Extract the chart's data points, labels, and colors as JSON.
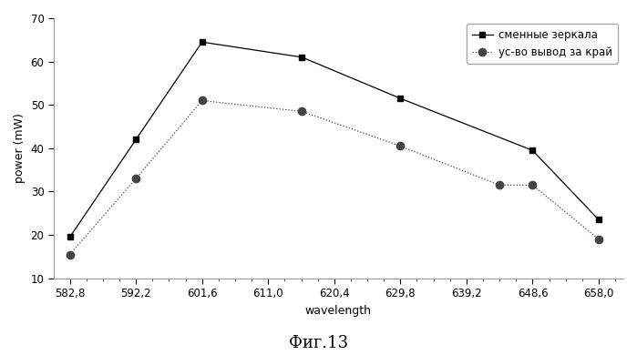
{
  "series1_label": "сменные зеркала",
  "series2_label": "ус-во вывод за край",
  "series1_x": [
    582.8,
    592.2,
    601.6,
    615.8,
    629.8,
    648.6,
    658.0
  ],
  "series1_y": [
    19.5,
    42.0,
    64.5,
    61.0,
    51.5,
    39.5,
    23.5
  ],
  "series2_x": [
    582.8,
    592.2,
    601.6,
    615.8,
    629.8,
    643.9,
    648.6,
    658.0
  ],
  "series2_y": [
    15.5,
    33.0,
    51.0,
    48.5,
    40.5,
    31.5,
    31.5,
    19.0
  ],
  "xlabel": "wavelength",
  "ylabel": "power (mW)",
  "ylim": [
    10,
    70
  ],
  "yticks": [
    10,
    20,
    30,
    40,
    50,
    60,
    70
  ],
  "xtick_labels": [
    "582,8",
    "592,2",
    "601,6",
    "611,0",
    "620,4",
    "629,8",
    "639,2",
    "648,6",
    "658,0"
  ],
  "xtick_positions": [
    582.8,
    592.2,
    601.6,
    611.0,
    620.4,
    629.8,
    639.2,
    648.6,
    658.0
  ],
  "series1_color": "#000000",
  "series2_color": "#444444",
  "fig_caption": "Фиг.13",
  "background_color": "#ffffff",
  "xlim_left": 580.5,
  "xlim_right": 661.5
}
